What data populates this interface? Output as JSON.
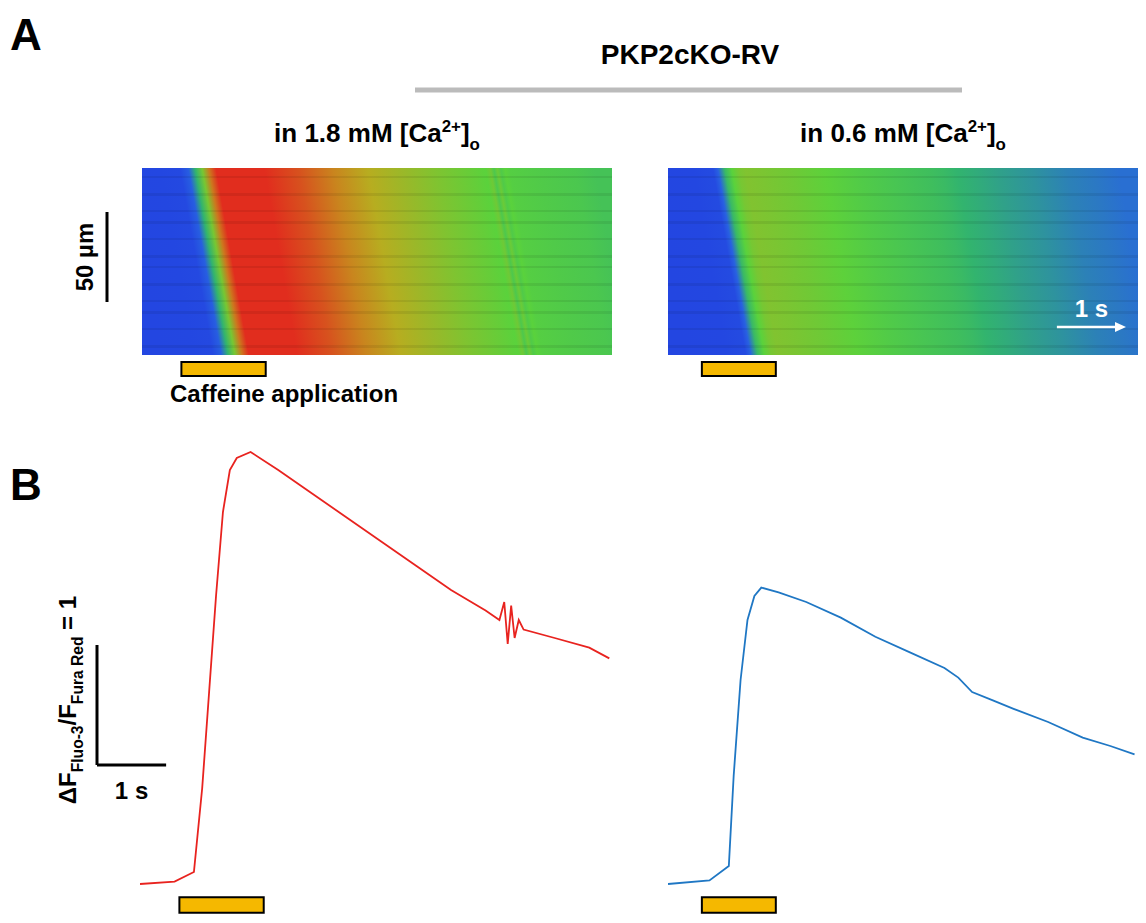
{
  "chart_data": [
    {
      "type": "line",
      "color": "#e8231f",
      "x": [
        0,
        0.5,
        0.78,
        0.9,
        1.0,
        1.1,
        1.2,
        1.3,
        1.4,
        1.6,
        2.0,
        2.5,
        3.0,
        3.5,
        4.0,
        4.5,
        5.0,
        5.2,
        5.27,
        5.32,
        5.37,
        5.42,
        5.48,
        5.55,
        6.0,
        6.5,
        6.79
      ],
      "values": [
        0,
        0.02,
        0.1,
        0.8,
        1.6,
        2.4,
        3.1,
        3.45,
        3.55,
        3.6,
        3.45,
        3.25,
        3.05,
        2.85,
        2.65,
        2.45,
        2.28,
        2.2,
        2.35,
        2.0,
        2.32,
        2.05,
        2.2,
        2.12,
        2.05,
        1.97,
        1.88
      ],
      "xlim": [
        0,
        6.8
      ],
      "ylim": [
        -0.3,
        3.7
      ],
      "tick_labels": false,
      "caffeine": [
        0.57,
        1.79
      ]
    },
    {
      "type": "line",
      "color": "#1f77c4",
      "x": [
        0,
        0.6,
        0.88,
        0.95,
        1.05,
        1.15,
        1.25,
        1.35,
        1.6,
        2.0,
        2.5,
        3.0,
        3.5,
        4.0,
        4.2,
        4.4,
        4.7,
        5.0,
        5.5,
        6.0,
        6.4,
        6.75
      ],
      "values": [
        0,
        0.03,
        0.15,
        0.9,
        1.7,
        2.2,
        2.4,
        2.47,
        2.43,
        2.35,
        2.22,
        2.06,
        1.93,
        1.8,
        1.72,
        1.6,
        1.53,
        1.46,
        1.35,
        1.22,
        1.15,
        1.08
      ],
      "xlim": [
        0,
        6.8
      ],
      "ylim": [
        -0.3,
        3.7
      ],
      "tick_labels": false,
      "caffeine": [
        0.49,
        1.56
      ]
    }
  ],
  "figure": {
    "panel_labels": [
      "A",
      "B"
    ],
    "title": "PKP2cKO-RV",
    "subtitles": [
      [
        {
          "t": "in 1.8 mM [Ca"
        },
        {
          "t": "2+",
          "sup": true
        },
        {
          "t": "]"
        },
        {
          "t": "o",
          "sub": true
        }
      ],
      [
        {
          "t": "in 0.6 mM [Ca"
        },
        {
          "t": "2+",
          "sup": true
        },
        {
          "t": "]"
        },
        {
          "t": "o",
          "sub": true
        }
      ]
    ],
    "linescan_space_label": "50 µm",
    "linescan_time_scale": {
      "value": 1,
      "label": "1 s"
    },
    "caffeine_label": "Caffeine application",
    "scale_bar": {
      "x": 1,
      "y": 1,
      "x_label": "1 s",
      "y_label": [
        {
          "t": "ΔF"
        },
        {
          "t": "Fluo-3",
          "sub": true
        },
        {
          "t": "/F"
        },
        {
          "t": "Fura Red",
          "sub": true
        },
        {
          "t": " = 1"
        }
      ]
    }
  }
}
